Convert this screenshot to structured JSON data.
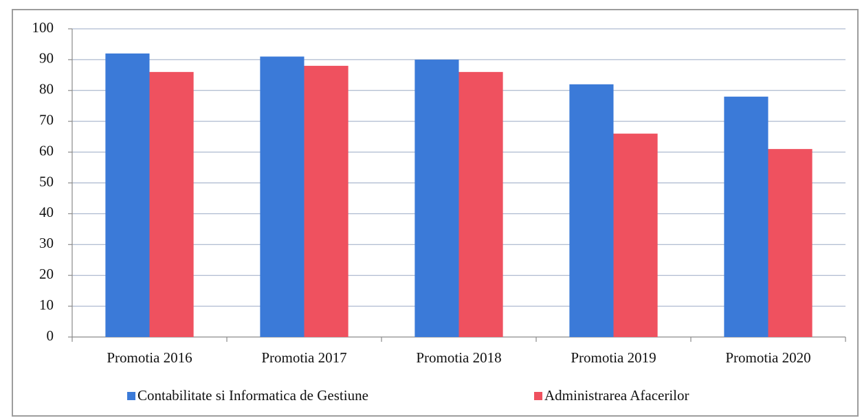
{
  "chart_data": {
    "type": "bar",
    "categories": [
      "Promotia 2016",
      "Promotia 2017",
      "Promotia 2018",
      "Promotia 2019",
      "Promotia 2020"
    ],
    "series": [
      {
        "name": "Contabilitate si Informatica de Gestiune",
        "color": "#3b7ad8",
        "values": [
          92,
          91,
          90,
          82,
          78
        ]
      },
      {
        "name": "Administrarea Afacerilor",
        "color": "#ef515f",
        "values": [
          86,
          88,
          86,
          66,
          61
        ]
      }
    ],
    "ylim": [
      0,
      100
    ],
    "yticks": [
      0,
      10,
      20,
      30,
      40,
      50,
      60,
      70,
      80,
      90,
      100
    ],
    "grid": true,
    "legend": "bottom"
  }
}
